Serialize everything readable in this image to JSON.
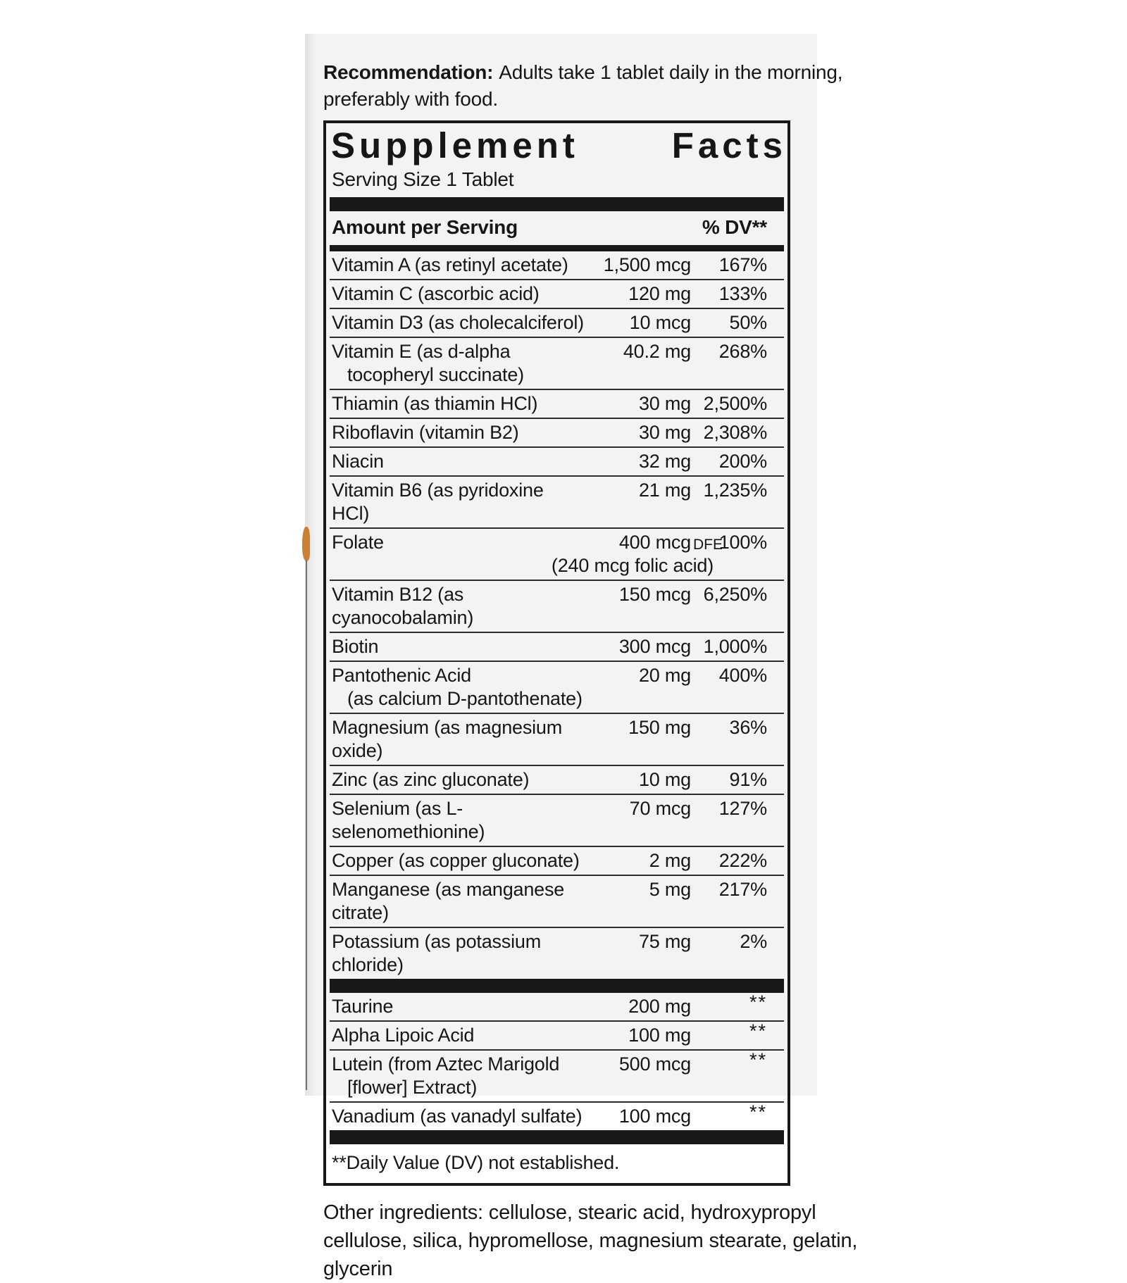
{
  "colors": {
    "page_bg": "#ffffff",
    "panel_bg": "#f3f3f1",
    "text": "#161616",
    "bar": "#181818",
    "border": "#181818",
    "separator": "#2c2c2c",
    "accent_mark": "#c98035"
  },
  "recommendation": {
    "bold_label": "Recommendation:",
    "line1_rest": "Adults take 1 tablet daily in the morning,",
    "line2": "preferably with food."
  },
  "panel": {
    "title": "Supplement Facts",
    "title_word1": "Supplement",
    "title_word2": "Facts",
    "serving_size": "Serving Size 1 Tablet",
    "header_amount": "Amount per Serving",
    "header_dv": "% DV**",
    "rows": [
      {
        "name": "Vitamin A (as retinyl acetate)",
        "amount": "1,500 mcg",
        "dv": "167%"
      },
      {
        "name": "Vitamin C (ascorbic acid)",
        "amount": "120 mg",
        "dv": "133%"
      },
      {
        "name": "Vitamin D3 (as cholecalciferol)",
        "amount": "10 mcg",
        "dv": "50%"
      },
      {
        "name": "Vitamin E (as d-alpha",
        "name2": "tocopheryl succinate)",
        "amount": "40.2 mg",
        "dv": "268%"
      },
      {
        "name": "Thiamin (as thiamin HCl)",
        "amount": "30 mg",
        "dv": "2,500%"
      },
      {
        "name": "Riboflavin (vitamin B2)",
        "amount": "30 mg",
        "dv": "2,308%"
      },
      {
        "name": "Niacin",
        "amount": "32 mg",
        "dv": "200%"
      },
      {
        "name": "Vitamin B6 (as pyridoxine HCl)",
        "amount": "21 mg",
        "dv": "1,235%"
      },
      {
        "name": "Folate",
        "amount": "400 mcg",
        "amount_suffix": "DFE",
        "amount2": "(240 mcg folic acid)",
        "dv": "100%"
      },
      {
        "name": "Vitamin B12 (as cyanocobalamin)",
        "amount": "150 mcg",
        "dv": "6,250%"
      },
      {
        "name": "Biotin",
        "amount": "300 mcg",
        "dv": "1,000%"
      },
      {
        "name": "Pantothenic Acid",
        "name2": "(as calcium D-pantothenate)",
        "amount": "20 mg",
        "dv": "400%"
      },
      {
        "name": "Magnesium (as magnesium oxide)",
        "amount": "150 mg",
        "dv": "36%"
      },
      {
        "name": "Zinc (as zinc gluconate)",
        "amount": "10 mg",
        "dv": "91%"
      },
      {
        "name": "Selenium (as L-selenomethionine)",
        "amount": "70 mcg",
        "dv": "127%"
      },
      {
        "name": "Copper (as copper gluconate)",
        "amount": "2 mg",
        "dv": "222%"
      },
      {
        "name": "Manganese (as manganese citrate)",
        "amount": "5 mg",
        "dv": "217%"
      },
      {
        "name": "Potassium (as potassium chloride)",
        "amount": "75 mg",
        "dv": "2%"
      }
    ],
    "rows_not_established": [
      {
        "name": "Taurine",
        "amount": "200 mg",
        "dv": "**"
      },
      {
        "name": "Alpha Lipoic Acid",
        "amount": "100 mg",
        "dv": "**"
      },
      {
        "name": "Lutein (from Aztec Marigold",
        "name2": "[flower] Extract)",
        "amount": "500 mcg",
        "dv": "**"
      },
      {
        "name": "Vanadium (as vanadyl sulfate)",
        "amount": "100 mcg",
        "dv": "**"
      }
    ],
    "footnote": "**Daily Value (DV) not established."
  },
  "other_ingredients": {
    "line1": "Other ingredients: cellulose, stearic acid, hydroxypropyl",
    "line2": "cellulose, silica, hypromellose, magnesium stearate, gelatin,",
    "line3": "glycerin"
  }
}
